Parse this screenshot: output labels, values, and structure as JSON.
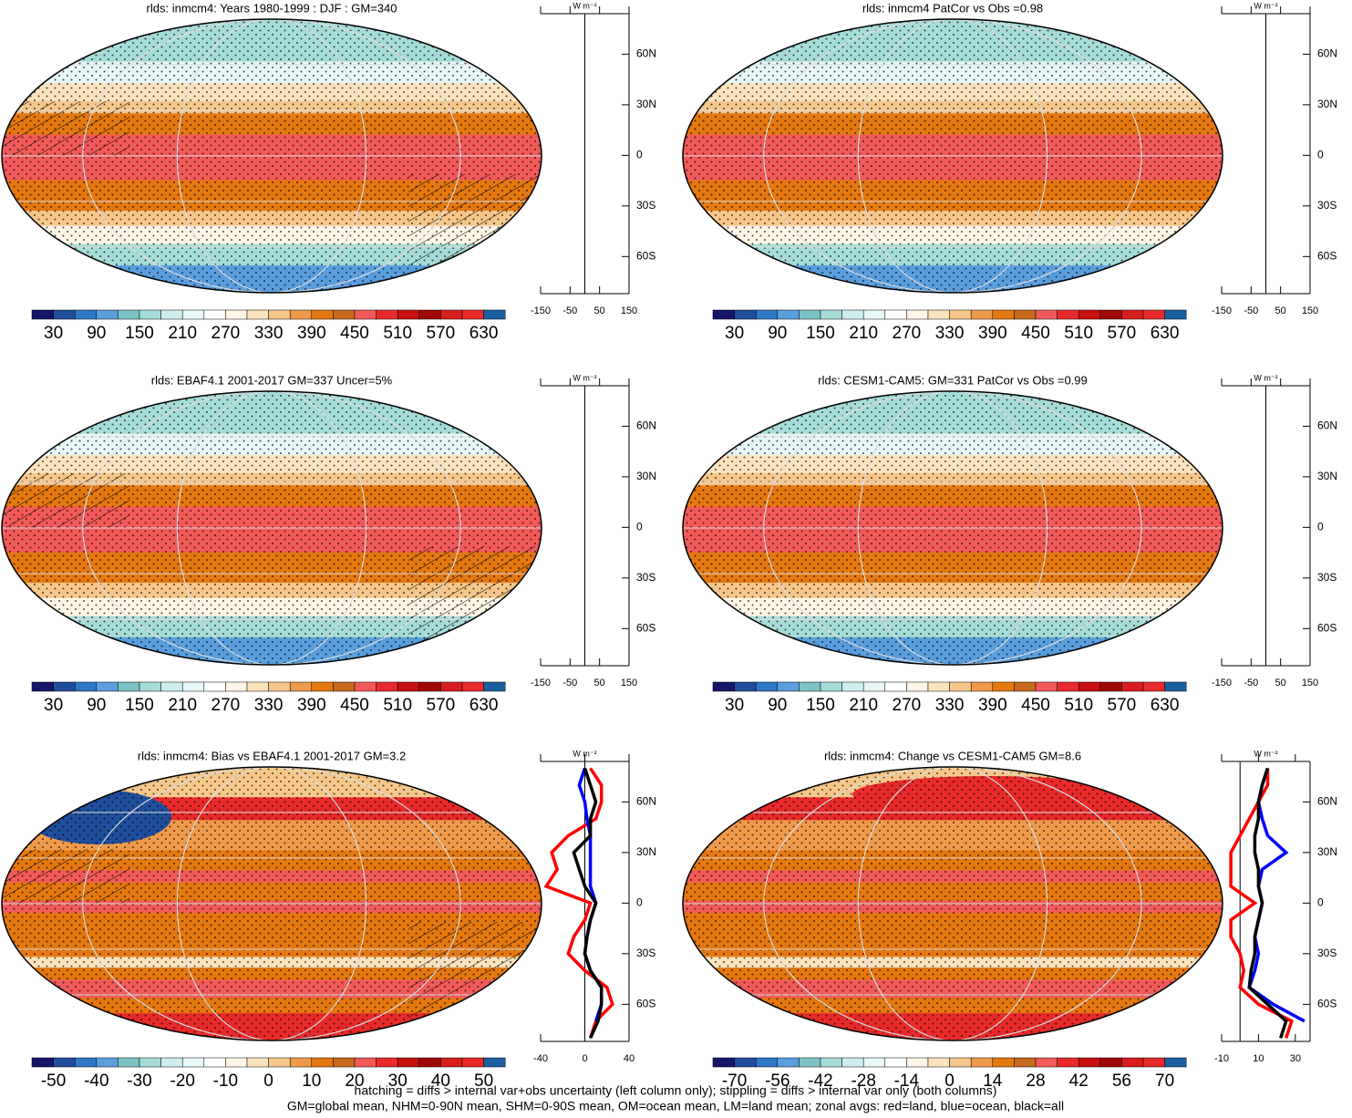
{
  "panels": [
    {
      "title": "rlds: inmcm4: Years 1980-1999 : DJF : GM=340",
      "colorbar": [
        "30",
        "90",
        "150",
        "210",
        "270",
        "330",
        "390",
        "450",
        "510",
        "570",
        "630"
      ],
      "zonal": {
        "unit": "W m⁻²",
        "xlim": [
          -150,
          150
        ],
        "xticks": [
          -150,
          -50,
          50,
          150
        ],
        "ylim": [
          -82,
          84
        ],
        "yticks": [
          {
            "value": 60,
            "label": "60N"
          },
          {
            "value": 30,
            "label": "30N"
          },
          0,
          {
            "value": -30,
            "label": "30S"
          },
          {
            "value": -60,
            "label": "60S"
          }
        ]
      }
    },
    {
      "title": "rlds: inmcm4 PatCor vs Obs =0.98",
      "colorbar": [
        "30",
        "90",
        "150",
        "210",
        "270",
        "330",
        "390",
        "450",
        "510",
        "570",
        "630"
      ],
      "zonal": {
        "unit": "W m⁻²",
        "xlim": [
          -150,
          150
        ],
        "xticks": [
          -150,
          -50,
          50,
          150
        ],
        "ylim": [
          -82,
          84
        ],
        "yticks": [
          {
            "value": 60,
            "label": "60N"
          },
          {
            "value": 30,
            "label": "30N"
          },
          0,
          {
            "value": -30,
            "label": "30S"
          },
          {
            "value": -60,
            "label": "60S"
          }
        ]
      }
    },
    {
      "title": "rlds: EBAF4.1 2001-2017 GM=337 Uncer=5%",
      "colorbar": [
        "30",
        "90",
        "150",
        "210",
        "270",
        "330",
        "390",
        "450",
        "510",
        "570",
        "630"
      ],
      "zonal": {
        "unit": "W m⁻²",
        "xlim": [
          -150,
          150
        ],
        "xticks": [
          -150,
          -50,
          50,
          150
        ],
        "ylim": [
          -82,
          84
        ],
        "yticks": [
          {
            "value": 60,
            "label": "60N"
          },
          {
            "value": 30,
            "label": "30N"
          },
          0,
          {
            "value": -30,
            "label": "30S"
          },
          {
            "value": -60,
            "label": "60S"
          }
        ]
      }
    },
    {
      "title": "rlds: CESM1-CAM5: GM=331 PatCor vs Obs =0.99",
      "colorbar": [
        "30",
        "90",
        "150",
        "210",
        "270",
        "330",
        "390",
        "450",
        "510",
        "570",
        "630"
      ],
      "zonal": {
        "unit": "W m⁻²",
        "xlim": [
          -150,
          150
        ],
        "xticks": [
          -150,
          -50,
          50,
          150
        ],
        "ylim": [
          -82,
          84
        ],
        "yticks": [
          {
            "value": 60,
            "label": "60N"
          },
          {
            "value": 30,
            "label": "30N"
          },
          0,
          {
            "value": -30,
            "label": "30S"
          },
          {
            "value": -60,
            "label": "60S"
          }
        ]
      }
    },
    {
      "title": "rlds: inmcm4: Bias vs EBAF4.1 2001-2017 GM=3.2",
      "colorbar": [
        "-50",
        "-40",
        "-30",
        "-20",
        "-10",
        "0",
        "10",
        "20",
        "30",
        "40",
        "50"
      ],
      "zonal": {
        "unit": "W m⁻²",
        "xlim": [
          -40,
          40
        ],
        "xticks": [
          -40,
          0,
          40
        ],
        "ylim": [
          -82,
          84
        ],
        "yticks": [
          {
            "value": 60,
            "label": "60N"
          },
          {
            "value": 30,
            "label": "30N"
          },
          0,
          {
            "value": -30,
            "label": "30S"
          },
          {
            "value": -60,
            "label": "60S"
          }
        ],
        "lat": [
          80,
          70,
          60,
          50,
          40,
          30,
          20,
          10,
          0,
          -10,
          -20,
          -30,
          -40,
          -50,
          -60,
          -70,
          -80
        ],
        "series": [
          {
            "color": "#ff0000",
            "values": [
              5,
              15,
              15,
              10,
              -15,
              -30,
              -25,
              -35,
              5,
              0,
              -10,
              -15,
              0,
              20,
              25,
              10,
              5
            ]
          },
          {
            "color": "#0000ff",
            "values": [
              0,
              -5,
              0,
              2,
              5,
              5,
              5,
              5,
              10,
              5,
              2,
              0,
              5,
              15,
              15,
              10,
              null
            ]
          },
          {
            "color": "#000000",
            "values": [
              0,
              5,
              10,
              5,
              5,
              -10,
              -5,
              0,
              10,
              5,
              2,
              0,
              5,
              15,
              15,
              12,
              5
            ]
          }
        ]
      }
    },
    {
      "title": "rlds: inmcm4: Change vs CESM1-CAM5 GM=8.6",
      "colorbar": [
        "-70",
        "-56",
        "-42",
        "-28",
        "-14",
        "0",
        "14",
        "28",
        "42",
        "56",
        "70"
      ],
      "zonal": {
        "unit": "W m⁻²",
        "xlim": [
          -10,
          38
        ],
        "xticks": [
          -10,
          10,
          30
        ],
        "ylim": [
          -82,
          84
        ],
        "yticks": [
          {
            "value": 60,
            "label": "60N"
          },
          {
            "value": 30,
            "label": "30N"
          },
          0,
          {
            "value": -30,
            "label": "30S"
          },
          {
            "value": -60,
            "label": "60S"
          }
        ],
        "lat": [
          80,
          70,
          60,
          50,
          40,
          30,
          20,
          10,
          0,
          -10,
          -20,
          -30,
          -40,
          -50,
          -60,
          -70,
          -80
        ],
        "series": [
          {
            "color": "#ff0000",
            "values": [
              15,
              15,
              10,
              5,
              0,
              -5,
              -5,
              -5,
              8,
              -5,
              -5,
              0,
              2,
              0,
              10,
              28,
              25
            ]
          },
          {
            "color": "#0000ff",
            "values": [
              15,
              12,
              10,
              12,
              15,
              25,
              12,
              10,
              12,
              10,
              8,
              10,
              8,
              5,
              18,
              35,
              null
            ]
          },
          {
            "color": "#000000",
            "values": [
              15,
              12,
              10,
              10,
              8,
              8,
              10,
              10,
              12,
              10,
              8,
              8,
              6,
              5,
              15,
              25,
              22
            ]
          }
        ]
      }
    }
  ],
  "footer": [
    "hatching = diffs > internal var+obs uncertainty (left column only); stippling = diffs > internal var only (both columns)",
    "GM=global mean, NHM=0-90N mean, SHM=0-90S mean, OM=ocean mean, LM=land mean; zonal avgs: red=land, blue=ocean, black=all"
  ]
}
